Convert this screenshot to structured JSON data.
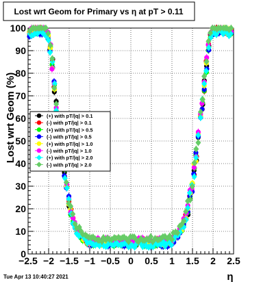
{
  "chart_data": {
    "type": "scatter",
    "title": "Lost wrt Geom for Primary vs   η at pT > 0.11",
    "xlabel": "η",
    "ylabel": "Lost wrt Geom (%)",
    "xlim": [
      -2.5,
      2.5
    ],
    "ylim": [
      0,
      100
    ],
    "x_ticks": [
      -2.5,
      -2,
      -1.5,
      -1,
      -0.5,
      0,
      0.5,
      1,
      1.5,
      2,
      2.5
    ],
    "x_tick_labels": [
      "−2.5",
      "−2",
      "−1.5",
      "−1",
      "−0.5",
      "0",
      "0.5",
      "1",
      "1.5",
      "2",
      "2.5"
    ],
    "y_ticks": [
      0,
      10,
      20,
      30,
      40,
      50,
      60,
      70,
      80,
      90,
      100
    ],
    "grid": true,
    "legend_position": "middle-left",
    "series": [
      {
        "name": "(+) with pT/|q| > 0.1",
        "color": "#000000",
        "marker": "circle"
      },
      {
        "name": "(-) with pT/|q| > 0.1",
        "color": "#ff0000",
        "marker": "circle"
      },
      {
        "name": "(+) with pT/|q| > 0.5",
        "color": "#00ff00",
        "marker": "circle"
      },
      {
        "name": "(-) with pT/|q| > 0.5",
        "color": "#0000ff",
        "marker": "circle"
      },
      {
        "name": "(+) with pT/|q| > 1.0",
        "color": "#ffff00",
        "marker": "circle"
      },
      {
        "name": "(-) with pT/|q| > 1.0",
        "color": "#ff00ff",
        "marker": "circle"
      },
      {
        "name": "(+) with pT/|q| > 2.0",
        "color": "#00ffff",
        "marker": "diamond"
      },
      {
        "name": "(-) with pT/|q| > 2.0",
        "color": "#66cc66",
        "marker": "diamond"
      }
    ],
    "curve_shape": {
      "eta": [
        -2.45,
        -2.3,
        -2.2,
        -2.1,
        -2.0,
        -1.95,
        -1.9,
        -1.85,
        -1.8,
        -1.75,
        -1.7,
        -1.65,
        -1.6,
        -1.55,
        -1.5,
        -1.45,
        -1.4,
        -1.35,
        -1.3,
        -1.25,
        -1.2,
        -1.15,
        -1.1,
        -1.05,
        -1.0,
        -0.9,
        -0.8,
        -0.5,
        0.0,
        0.5,
        0.8,
        0.9,
        1.0,
        1.05,
        1.1,
        1.15,
        1.2,
        1.25,
        1.3,
        1.35,
        1.4,
        1.45,
        1.5,
        1.55,
        1.6,
        1.65,
        1.7,
        1.75,
        1.8,
        1.85,
        1.9,
        1.95,
        2.0,
        2.1,
        2.2,
        2.3,
        2.45
      ],
      "lost_pct": [
        98,
        99,
        99,
        99,
        96,
        90,
        82,
        72,
        63,
        55,
        48,
        42,
        35,
        28,
        22,
        18,
        14,
        12,
        10,
        9,
        8,
        7,
        6,
        5.5,
        5,
        5,
        5,
        5,
        5,
        5,
        5,
        5,
        6,
        7,
        8,
        9,
        10,
        12,
        14,
        17,
        21,
        26,
        32,
        38,
        45,
        52,
        60,
        68,
        76,
        85,
        93,
        98,
        99,
        99,
        99,
        99,
        98
      ]
    }
  },
  "stamp": "Tue Apr 13 10:40:27 2021"
}
